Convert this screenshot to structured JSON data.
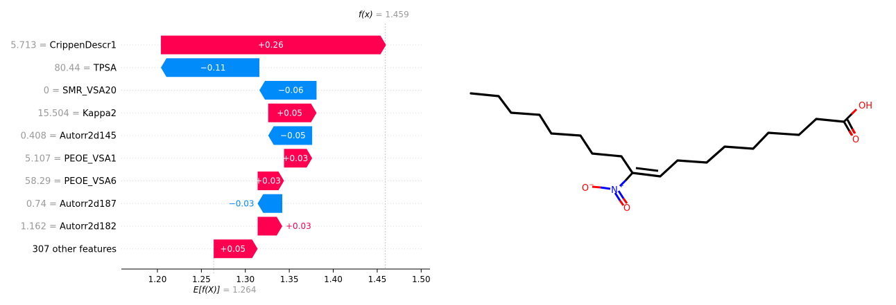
{
  "chart_data": {
    "type": "waterfall",
    "base_value": 1.264,
    "final_value": 1.459,
    "base_label": "1.264",
    "final_label": "1.459",
    "fx_label": "f(x)",
    "efx_label": "E[f(X)]",
    "xlim": [
      1.159,
      1.51
    ],
    "xticks": [
      1.2,
      1.25,
      1.3,
      1.35,
      1.4,
      1.45,
      1.5
    ],
    "xtick_labels": [
      "1.20",
      "1.25",
      "1.30",
      "1.35",
      "1.40",
      "1.45",
      "1.50"
    ],
    "features": [
      {
        "value": "5.713",
        "name": "CrippenDescr1",
        "contribution": 0.256,
        "label": "+0.26"
      },
      {
        "value": "80.44",
        "name": "TPSA",
        "contribution": -0.112,
        "label": "−0.11"
      },
      {
        "value": "0",
        "name": "SMR_VSA20",
        "contribution": -0.065,
        "label": "−0.06"
      },
      {
        "value": "15.504",
        "name": "Kappa2",
        "contribution": 0.055,
        "label": "+0.05"
      },
      {
        "value": "0.408",
        "name": "Autorr2d145",
        "contribution": -0.05,
        "label": "−0.05"
      },
      {
        "value": "5.107",
        "name": "PEOE_VSA1",
        "contribution": 0.032,
        "label": "+0.03"
      },
      {
        "value": "58.29",
        "name": "PEOE_VSA6",
        "contribution": 0.03,
        "label": "+0.03"
      },
      {
        "value": "0.74",
        "name": "Autorr2d187",
        "contribution": -0.028,
        "label": "−0.03"
      },
      {
        "value": "1.162",
        "name": "Autorr2d182",
        "contribution": 0.028,
        "label": "+0.03"
      },
      {
        "value": "",
        "name": "307 other features",
        "contribution": 0.05,
        "label": "+0.05"
      }
    ],
    "colors": {
      "positive": "#ff0051",
      "negative": "#008bfb",
      "muted": "#999999",
      "text": "#000000"
    }
  },
  "molecule": {
    "atom_labels": {
      "oh": "OH",
      "o_carbonyl": "O",
      "o_minus": "O",
      "o_nitro": "O",
      "n": "N"
    },
    "charges": {
      "o_minus": "−",
      "n": "+"
    },
    "colors": {
      "bond": "#000000",
      "oxygen": "#ff0000",
      "nitrogen": "#0000ff"
    }
  }
}
